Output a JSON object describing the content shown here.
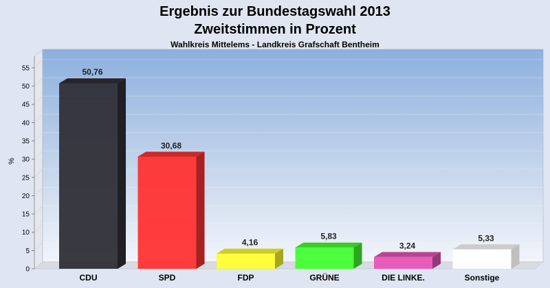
{
  "chart_data": {
    "type": "bar",
    "title": "Ergebnis zur Bundestagswahl 2013",
    "title2": "Zweitstimmen in Prozent",
    "subtitle": "Wahlkreis Mittelems - Landkreis Grafschaft Bentheim",
    "ylabel": "%",
    "ylim": [
      0,
      55
    ],
    "yticks": [
      0,
      5,
      10,
      15,
      20,
      25,
      30,
      35,
      40,
      45,
      50,
      55
    ],
    "categories": [
      "CDU",
      "SPD",
      "FDP",
      "GRÜNE",
      "DIE LINKE.",
      "Sonstige"
    ],
    "values": [
      50.76,
      30.68,
      4.16,
      5.83,
      3.24,
      5.33
    ],
    "value_labels": [
      "50,76",
      "30,68",
      "4,16",
      "5,83",
      "3,24",
      "5,33"
    ],
    "colors": [
      "#2f2f37",
      "#ff3333",
      "#ffff33",
      "#44ff33",
      "#e855b8",
      "#ffffff"
    ],
    "grid": true,
    "legend": "none"
  }
}
